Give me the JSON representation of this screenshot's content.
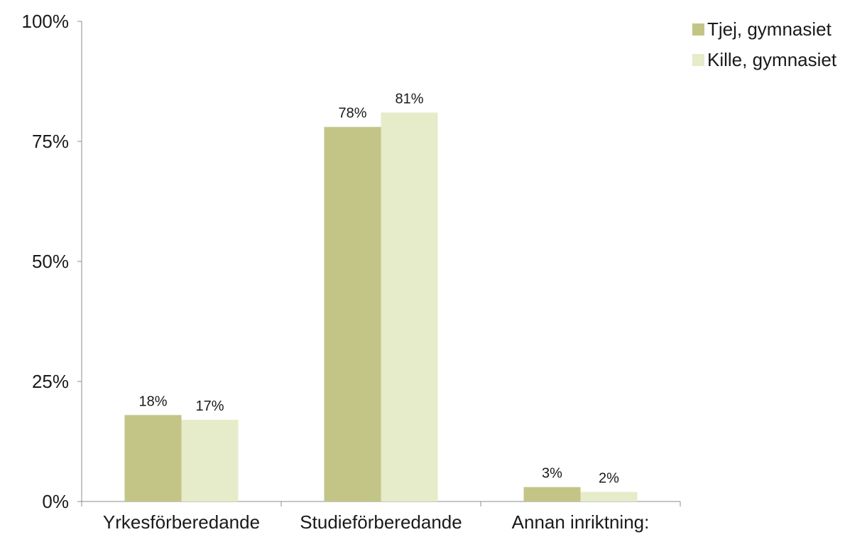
{
  "chart_data": {
    "type": "bar",
    "title": "",
    "xlabel": "",
    "ylabel": "",
    "categories": [
      "Yrkesförberedande",
      "Studieförberedande",
      "Annan inriktning:"
    ],
    "series": [
      {
        "name": "Tjej, gymnasiet",
        "values": [
          18,
          78,
          3
        ],
        "labels": [
          "18%",
          "78%",
          "3%"
        ],
        "color": "#c3c586"
      },
      {
        "name": "Kille, gymnasiet",
        "values": [
          17,
          81,
          2
        ],
        "labels": [
          "17%",
          "81%",
          "2%"
        ],
        "color": "#e6ebc9"
      }
    ],
    "ylim": [
      0,
      100
    ],
    "yticks": [
      0,
      25,
      50,
      75,
      100
    ],
    "ytick_labels": [
      "0%",
      "25%",
      "50%",
      "75%",
      "100%"
    ],
    "grid": false,
    "legend_position": "top-right"
  }
}
